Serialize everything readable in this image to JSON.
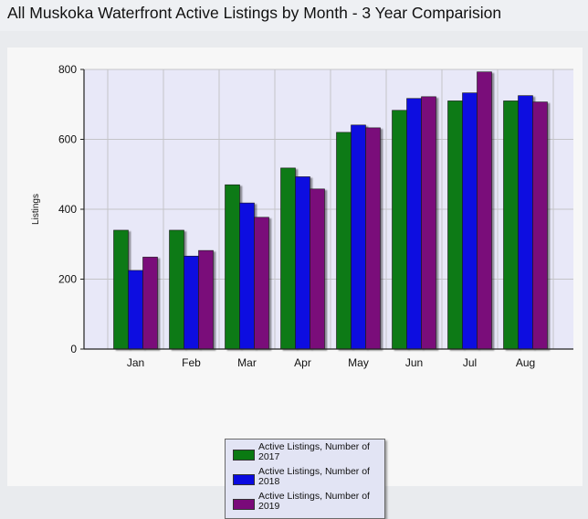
{
  "page": {
    "title": "All Muskoka Waterfront Active Listings by Month - 3 Year Comparision"
  },
  "colors": {
    "plot_background": "#e8e8f8",
    "gridline": "#c4c4c8",
    "axis": "#222222"
  },
  "chart_data": {
    "type": "bar",
    "title": "",
    "xlabel": "",
    "ylabel": "Listings",
    "ylim": [
      0,
      800
    ],
    "yticks": [
      0,
      200,
      400,
      600,
      800
    ],
    "grid": true,
    "legend_position": "bottom",
    "categories": [
      "Jan",
      "Feb",
      "Mar",
      "Apr",
      "May",
      "Jun",
      "Jul",
      "Aug"
    ],
    "series": [
      {
        "name": "Active Listings, Number of 2017",
        "color": "#0a7a12",
        "values": [
          340,
          340,
          470,
          518,
          620,
          683,
          710,
          710
        ]
      },
      {
        "name": "Active Listings, Number of 2018",
        "color": "#0a0ae0",
        "values": [
          225,
          266,
          418,
          493,
          641,
          717,
          733,
          725
        ]
      },
      {
        "name": "Active Listings, Number of 2019",
        "color": "#7a0a7a",
        "values": [
          263,
          282,
          377,
          458,
          633,
          722,
          793,
          707
        ]
      }
    ]
  }
}
